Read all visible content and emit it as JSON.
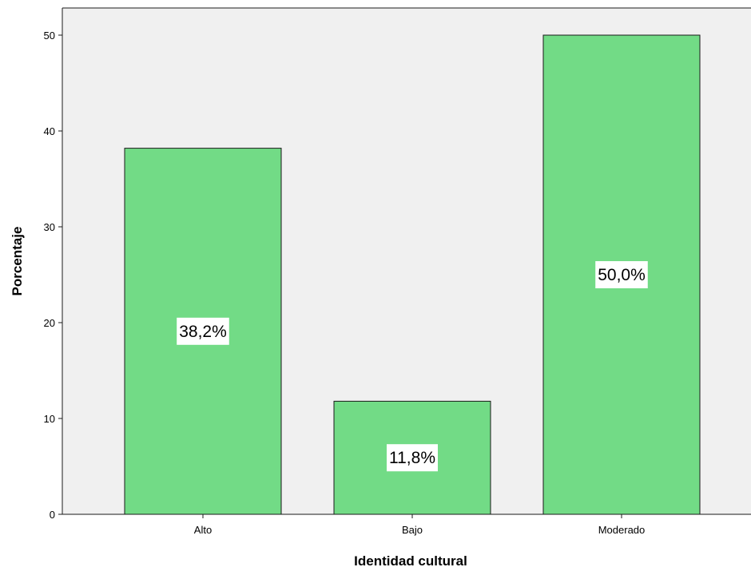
{
  "chart_data": {
    "type": "bar",
    "categories": [
      "Alto",
      "Bajo",
      "Moderado"
    ],
    "values": [
      38.2,
      11.8,
      50.0
    ],
    "data_labels": [
      "38,2%",
      "11,8%",
      "50,0%"
    ],
    "xlabel": "Identidad cultural",
    "ylabel": "Porcentaje",
    "ylim": [
      0,
      50
    ],
    "yticks": [
      0,
      10,
      20,
      30,
      40,
      50
    ],
    "ytick_labels": [
      "0",
      "10",
      "20",
      "30",
      "40",
      "50"
    ],
    "grid": false,
    "colors": {
      "bar_fill": "#72db86",
      "bar_stroke": "#1a1a1a",
      "plot_background": "#f0f0f0",
      "label_box": "#ffffff"
    }
  }
}
